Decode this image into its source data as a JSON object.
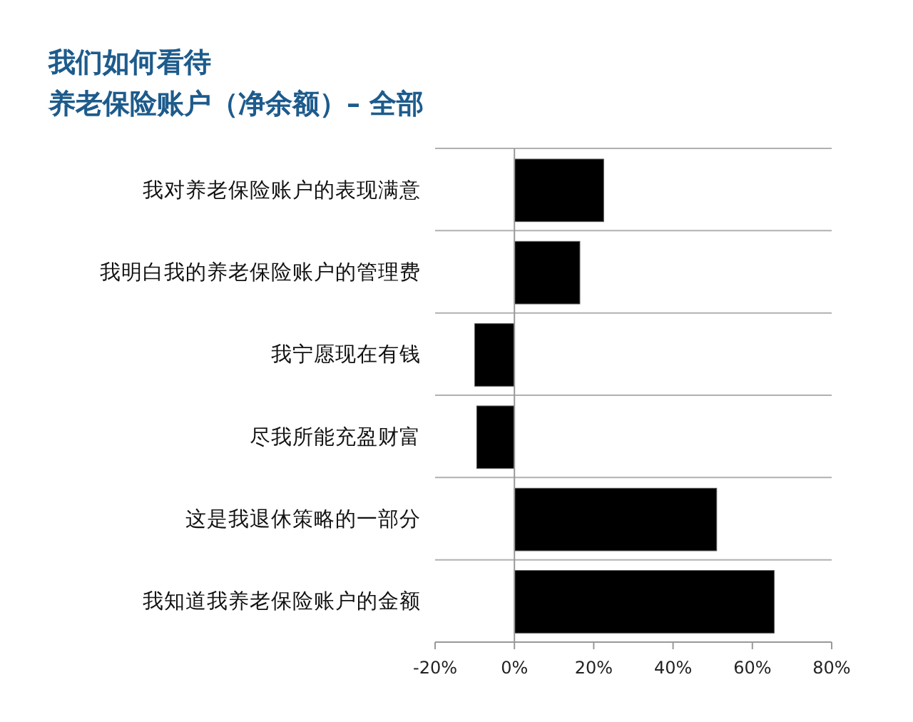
{
  "chart_data": {
    "type": "bar",
    "orientation": "horizontal",
    "title": "我们如何看待",
    "subtitle": "养老保险账户（净余额）– 全部",
    "categories": [
      "我对养老保险账户的表现满意",
      "我明白我的养老保险账户的管理费",
      "我宁愿现在有钱",
      "尽我所能充盈财富",
      "这是我退休策略的一部分",
      "我知道我养老保险账户的金额"
    ],
    "values": [
      22.5,
      16.5,
      -10,
      -9.5,
      51,
      65.5
    ],
    "color": "#000000",
    "xlim": [
      -20,
      80
    ],
    "xticks": [
      {
        "value": -20,
        "label": "-20%"
      },
      {
        "value": 0,
        "label": "0%"
      },
      {
        "value": 20,
        "label": "20%"
      },
      {
        "value": 40,
        "label": "40%"
      },
      {
        "value": 60,
        "label": "60%"
      },
      {
        "value": 80,
        "label": "80%"
      }
    ],
    "grid": "y"
  }
}
